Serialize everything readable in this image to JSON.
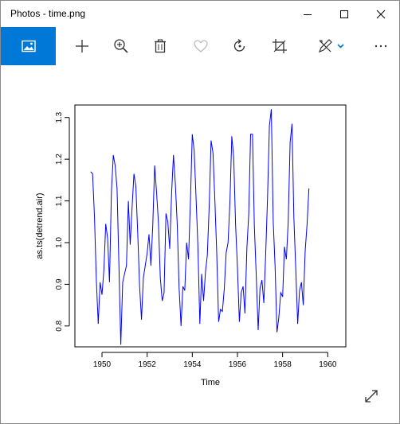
{
  "window": {
    "title": "Photos - time.png"
  },
  "toolbar": {
    "items": [
      {
        "name": "view-photo-icon",
        "active": true
      },
      {
        "name": "add-icon"
      },
      {
        "name": "zoom-in-icon"
      },
      {
        "name": "delete-icon"
      },
      {
        "name": "favorite-heart-icon"
      },
      {
        "name": "rotate-icon"
      },
      {
        "name": "crop-icon"
      },
      {
        "name": "edit-draw-icon"
      },
      {
        "name": "more-options-icon"
      }
    ],
    "accent_color": "#0078d7"
  },
  "chart_data": {
    "type": "line",
    "xlabel": "Time",
    "ylabel": "as.ts(detrend.air)",
    "xlim": [
      1948.8,
      1960.8
    ],
    "ylim": [
      0.75,
      1.33
    ],
    "x_ticks": [
      1950,
      1952,
      1954,
      1956,
      1958,
      1960
    ],
    "x_tick_labels": [
      "1950",
      "1952",
      "1954",
      "1956",
      "1958",
      "1960"
    ],
    "y_ticks": [
      0.8,
      0.9,
      1.0,
      1.1,
      1.2,
      1.3
    ],
    "y_tick_labels": [
      "0.8",
      "0.9",
      "1.0",
      "1.1",
      "1.2",
      "1.3"
    ],
    "series": [
      {
        "color": "#0000ff",
        "x_start": 1949.5,
        "x_step": 0.0833333,
        "values": [
          1.17,
          1.165,
          1.06,
          0.91,
          0.805,
          0.905,
          0.875,
          0.935,
          1.045,
          1.01,
          0.905,
          1.12,
          1.21,
          1.185,
          1.13,
          0.95,
          0.755,
          0.905,
          0.925,
          0.945,
          1.1,
          0.995,
          1.085,
          1.165,
          1.135,
          1.02,
          0.895,
          0.815,
          0.915,
          0.945,
          0.975,
          1.02,
          0.945,
          1.04,
          1.185,
          1.12,
          1.05,
          0.915,
          0.86,
          0.88,
          1.07,
          1.05,
          0.985,
          1.12,
          1.21,
          1.14,
          1.045,
          0.89,
          0.8,
          0.895,
          0.885,
          1.0,
          0.96,
          1.1,
          1.26,
          1.22,
          1.105,
          0.99,
          0.805,
          0.925,
          0.86,
          0.93,
          0.97,
          1.09,
          1.245,
          1.215,
          1.1,
          0.975,
          0.81,
          0.84,
          0.835,
          0.89,
          0.975,
          1.0,
          1.1,
          1.255,
          1.205,
          1.045,
          0.94,
          0.81,
          0.88,
          0.895,
          0.83,
          0.985,
          1.07,
          1.26,
          1.26,
          1.04,
          0.92,
          0.79,
          0.89,
          0.91,
          0.855,
          0.97,
          1.11,
          1.28,
          1.32,
          1.05,
          0.945,
          0.785,
          0.82,
          0.88,
          0.87,
          0.99,
          0.96,
          1.05,
          1.24,
          1.285,
          1.06,
          0.935,
          0.805,
          0.885,
          0.905,
          0.85,
          0.98,
          1.045,
          1.13
        ]
      }
    ],
    "grid": false,
    "legend": "none"
  }
}
